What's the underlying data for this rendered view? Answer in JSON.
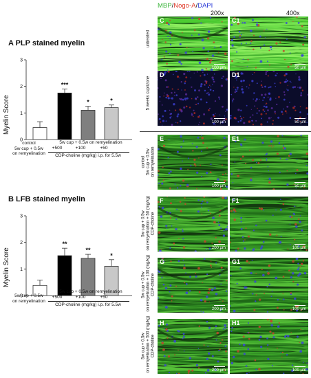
{
  "panels": {
    "a": {
      "title": "A  PLP stained myelin",
      "ylabel": "Myelin Score",
      "control_label": [
        "control",
        "5w cup + 0.5w",
        "on remyelination"
      ],
      "group_label": "5w cup + 0.5w on remyelination",
      "dose_labels": [
        "+500",
        "+100",
        "+50"
      ],
      "axis_caption": "CDP-choline (mg/kg) i.p. for 5.5w"
    },
    "b": {
      "title": "B  LFB stained myelin",
      "ylabel": "Myelin Score",
      "control_label": [
        "control",
        "5w cup + 0.5w",
        "on remyelination"
      ],
      "group_label": "5w cup + 0.5w on remyelination",
      "dose_labels": [
        "+500",
        "+100",
        "+50"
      ],
      "axis_caption": "CDP-choline (mg/kg) i.p. for 5.5w"
    }
  },
  "chart_data": [
    {
      "type": "bar",
      "title": "PLP stained myelin",
      "ylabel": "Myelin Score",
      "categories": [
        "control",
        "+500",
        "+100",
        "+50"
      ],
      "values": [
        0.45,
        1.75,
        1.1,
        1.2
      ],
      "errors": [
        0.22,
        0.15,
        0.15,
        0.1
      ],
      "significance": [
        "",
        "***",
        "*",
        "*"
      ],
      "colors": [
        "#ffffff",
        "#000000",
        "#7f7f7f",
        "#c8c8c8"
      ],
      "ylim": [
        0,
        3
      ],
      "yticks": [
        "0",
        "1",
        "2",
        "3"
      ]
    },
    {
      "type": "bar",
      "title": "LFB stained myelin",
      "ylabel": "Myelin Score",
      "categories": [
        "control",
        "+500",
        "+100",
        "+50"
      ],
      "values": [
        0.38,
        1.5,
        1.4,
        1.1
      ],
      "errors": [
        0.2,
        0.28,
        0.15,
        0.25
      ],
      "significance": [
        "",
        "**",
        "**",
        "*"
      ],
      "colors": [
        "#ffffff",
        "#000000",
        "#7f7f7f",
        "#c8c8c8"
      ],
      "ylim": [
        0,
        3
      ],
      "yticks": [
        "0",
        "1",
        "2",
        "3"
      ]
    }
  ],
  "micrographs": {
    "stain_mbp": "MBP",
    "stain_slash": "/",
    "stain_nogo": "Nogo-A",
    "stain_dapi": "DAPI",
    "mag_left": "200x",
    "mag_right": "400x",
    "rows": [
      {
        "label": "untreated",
        "left_letter": "C",
        "right_letter": "C1",
        "left_scale": "100 µm",
        "right_scale": "50 µm"
      },
      {
        "label": "5 weeks cuprizone",
        "left_letter": "D",
        "right_letter": "D1",
        "left_scale": "100 µm",
        "right_scale": "50 µm"
      },
      {
        "label": "control\n5w cup + 0.5w\non remyelination",
        "left_letter": "E",
        "right_letter": "E1",
        "left_scale": "100 µm",
        "right_scale": "50 µm"
      },
      {
        "label": "5w cup + 0.5w\non remyelination + 50 (mg/kg)\nCDP-choline",
        "left_letter": "F",
        "right_letter": "F1",
        "left_scale": "200 µm",
        "right_scale": "100 µm"
      },
      {
        "label": "5w cup + 0.5w\non remyelination + 100 (mg/kg)\nCDP-choline",
        "left_letter": "G",
        "right_letter": "G1",
        "left_scale": "200 µm",
        "right_scale": "100 µm"
      },
      {
        "label": "5w cup + 0.5w\non remyelination + 500 (mg/kg)\nCDP-choline",
        "left_letter": "H",
        "right_letter": "H1",
        "left_scale": "200 µm",
        "right_scale": "100 µm"
      }
    ]
  }
}
